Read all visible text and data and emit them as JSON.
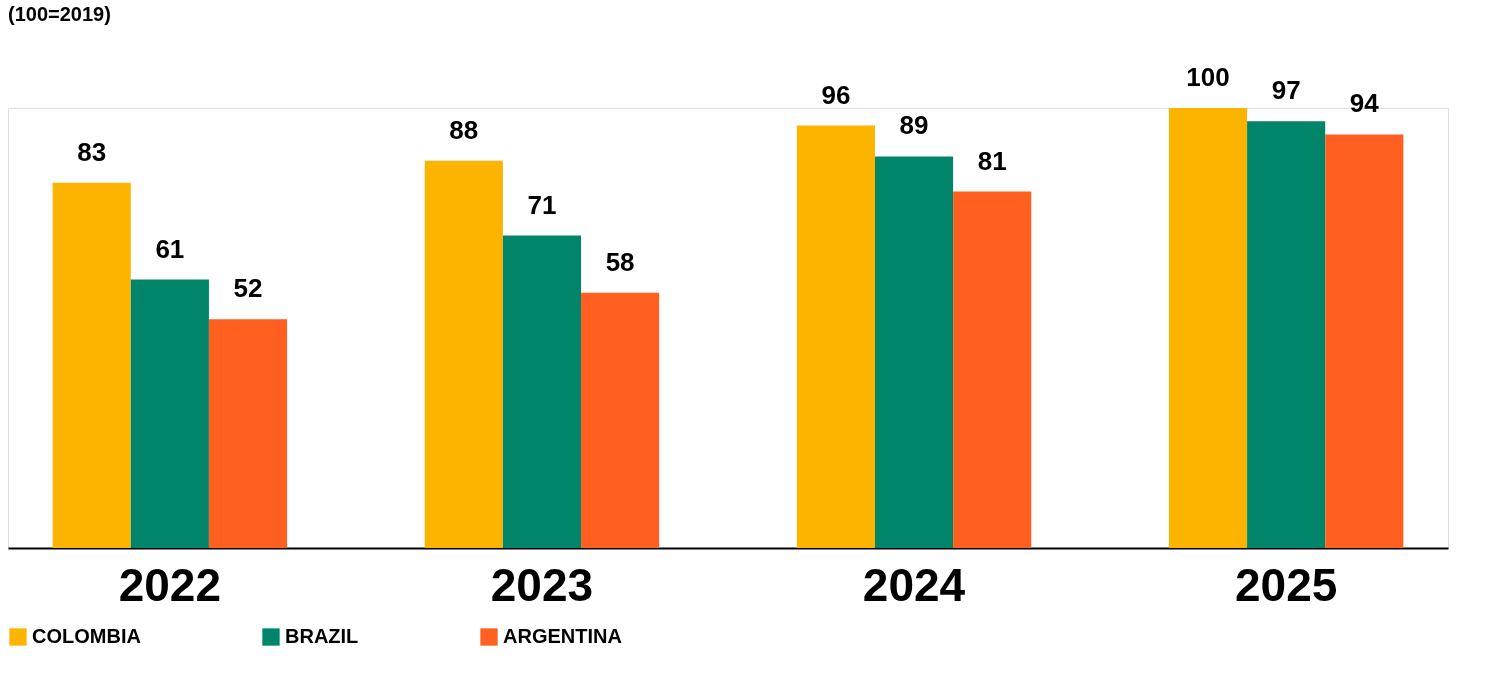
{
  "chart_data": {
    "type": "bar",
    "title": "(100=2019)",
    "categories": [
      "2022",
      "2023",
      "2024",
      "2025"
    ],
    "series": [
      {
        "name": "COLOMBIA",
        "color": "#fdb400",
        "values": [
          83,
          88,
          96,
          100
        ]
      },
      {
        "name": "BRAZIL",
        "color": "#00856a",
        "values": [
          61,
          71,
          89,
          97
        ]
      },
      {
        "name": "ARGENTINA",
        "color": "#ff5f1f",
        "values": [
          52,
          58,
          81,
          94
        ]
      }
    ],
    "data_labels": true,
    "legend": "bottom",
    "grid": false
  }
}
